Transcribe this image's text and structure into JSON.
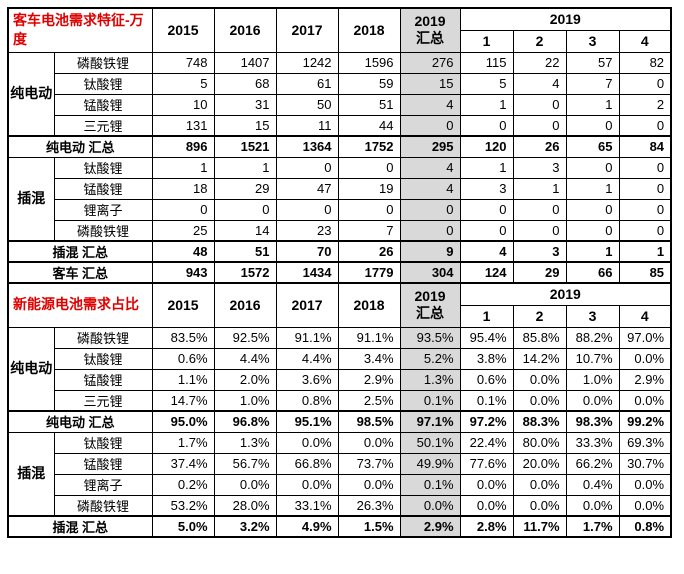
{
  "colors": {
    "title_red": "#e00000",
    "summary_gray": "#d9d9d9",
    "border_black": "#000000"
  },
  "chart_data": [
    {
      "type": "table",
      "title": "客车电池需求特征-万度",
      "unit": "",
      "header": {
        "years": [
          "2015",
          "2016",
          "2017",
          "2018"
        ],
        "summary_top": "2019",
        "summary_bottom": "汇总",
        "span_year": "2019",
        "quarters": [
          "1",
          "2",
          "3",
          "4"
        ]
      },
      "groups": [
        {
          "label": "纯电动",
          "rows": [
            {
              "material": "磷酸铁锂",
              "values": [
                748,
                1407,
                1242,
                1596,
                276,
                115,
                22,
                57,
                82
              ]
            },
            {
              "material": "钛酸锂",
              "values": [
                5,
                68,
                61,
                59,
                15,
                5,
                4,
                7,
                0
              ]
            },
            {
              "material": "锰酸锂",
              "values": [
                10,
                31,
                50,
                51,
                4,
                1,
                0,
                1,
                2
              ]
            },
            {
              "material": "三元锂",
              "values": [
                131,
                15,
                11,
                44,
                0,
                0,
                0,
                0,
                0
              ]
            }
          ],
          "summary": {
            "label": "纯电动 汇总",
            "values": [
              896,
              1521,
              1364,
              1752,
              295,
              120,
              26,
              65,
              84
            ]
          }
        },
        {
          "label": "插混",
          "rows": [
            {
              "material": "钛酸锂",
              "values": [
                1,
                1,
                0,
                0,
                4,
                1,
                3,
                0,
                0
              ]
            },
            {
              "material": "锰酸锂",
              "values": [
                18,
                29,
                47,
                19,
                4,
                3,
                1,
                1,
                0
              ]
            },
            {
              "material": "锂离子",
              "values": [
                0,
                0,
                0,
                0,
                0,
                0,
                0,
                0,
                0
              ]
            },
            {
              "material": "磷酸铁锂",
              "values": [
                25,
                14,
                23,
                7,
                0,
                0,
                0,
                0,
                0
              ]
            }
          ],
          "summary": {
            "label": "插混 汇总",
            "values": [
              48,
              51,
              70,
              26,
              9,
              4,
              3,
              1,
              1
            ]
          }
        }
      ],
      "grand_total": {
        "label": "客车 汇总",
        "values": [
          943,
          1572,
          1434,
          1779,
          304,
          124,
          29,
          66,
          85
        ]
      }
    },
    {
      "type": "table",
      "title": "新能源电池需求占比",
      "unit": "%",
      "header": {
        "years": [
          "2015",
          "2016",
          "2017",
          "2018"
        ],
        "summary_top": "2019",
        "summary_bottom": "汇总",
        "span_year": "2019",
        "quarters": [
          "1",
          "2",
          "3",
          "4"
        ]
      },
      "groups": [
        {
          "label": "纯电动",
          "rows": [
            {
              "material": "磷酸铁锂",
              "values": [
                83.5,
                92.5,
                91.1,
                91.1,
                93.5,
                95.4,
                85.8,
                88.2,
                97.0
              ]
            },
            {
              "material": "钛酸锂",
              "values": [
                0.6,
                4.4,
                4.4,
                3.4,
                5.2,
                3.8,
                14.2,
                10.7,
                0.0
              ]
            },
            {
              "material": "锰酸锂",
              "values": [
                1.1,
                2.0,
                3.6,
                2.9,
                1.3,
                0.6,
                0.0,
                1.0,
                2.9
              ]
            },
            {
              "material": "三元锂",
              "values": [
                14.7,
                1.0,
                0.8,
                2.5,
                0.1,
                0.1,
                0.0,
                0.0,
                0.0
              ]
            }
          ],
          "summary": {
            "label": "纯电动 汇总",
            "values": [
              95.0,
              96.8,
              95.1,
              98.5,
              97.1,
              97.2,
              88.3,
              98.3,
              99.2
            ]
          }
        },
        {
          "label": "插混",
          "rows": [
            {
              "material": "钛酸锂",
              "values": [
                1.7,
                1.3,
                0.0,
                0.0,
                50.1,
                22.4,
                80.0,
                33.3,
                69.3
              ]
            },
            {
              "material": "锰酸锂",
              "values": [
                37.4,
                56.7,
                66.8,
                73.7,
                49.9,
                77.6,
                20.0,
                66.2,
                30.7
              ]
            },
            {
              "material": "锂离子",
              "values": [
                0.2,
                0.0,
                0.0,
                0.0,
                0.1,
                0.0,
                0.0,
                0.4,
                0.0
              ]
            },
            {
              "material": "磷酸铁锂",
              "values": [
                53.2,
                28.0,
                33.1,
                26.3,
                0.0,
                0.0,
                0.0,
                0.0,
                0.0
              ]
            }
          ],
          "summary": {
            "label": "插混 汇总",
            "values": [
              5.0,
              3.2,
              4.9,
              1.5,
              2.9,
              2.8,
              11.7,
              1.7,
              0.8
            ]
          }
        }
      ],
      "grand_total": null
    }
  ]
}
